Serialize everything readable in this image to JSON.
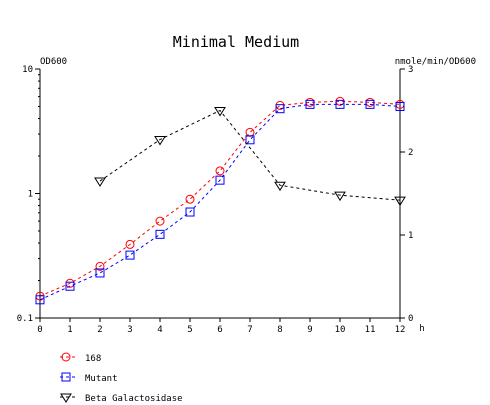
{
  "chart_data": {
    "type": "line",
    "title": "Minimal Medium",
    "y_left_label": "OD600",
    "y_right_label": "nmole/min/OD600",
    "x_unit": "h",
    "x_ticks": [
      "0",
      "1",
      "2",
      "3",
      "4",
      "5",
      "6",
      "7",
      "8",
      "9",
      "10",
      "11",
      "12"
    ],
    "y_left_ticks": [
      "0.1",
      "1",
      "10"
    ],
    "y_right_ticks": [
      "0",
      "1",
      "2",
      "3"
    ],
    "xlim": [
      0,
      12
    ],
    "y_left_lim": [
      0.1,
      10
    ],
    "y_left_scale": "log",
    "y_right_lim": [
      0,
      3
    ],
    "grid": false,
    "legend_position": "bottom-left",
    "series": [
      {
        "name": "168",
        "axis": "left",
        "color": "#ff0000",
        "line_color": "#ff0000",
        "marker": "circle",
        "x": [
          0,
          1,
          2,
          3,
          4,
          5,
          6,
          7,
          8,
          9,
          10,
          11,
          12
        ],
        "values": [
          0.15,
          0.19,
          0.26,
          0.39,
          0.6,
          0.9,
          1.52,
          3.1,
          5.1,
          5.4,
          5.5,
          5.4,
          5.2
        ]
      },
      {
        "name": "Mutant",
        "axis": "left",
        "color": "#0000ff",
        "line_color": "#0000ff",
        "marker": "square",
        "x": [
          0,
          1,
          2,
          3,
          4,
          5,
          6,
          7,
          8,
          9,
          10,
          11,
          12
        ],
        "values": [
          0.14,
          0.18,
          0.23,
          0.32,
          0.47,
          0.71,
          1.28,
          2.7,
          4.8,
          5.2,
          5.2,
          5.2,
          5.0
        ]
      },
      {
        "name": "Beta Galactosidase",
        "axis": "right",
        "color": "#000000",
        "line_color": "#000000",
        "marker": "triangle-down",
        "x": [
          2,
          4,
          6,
          8,
          10,
          12
        ],
        "values": [
          1.65,
          2.15,
          2.5,
          1.6,
          1.48,
          1.42
        ]
      }
    ]
  }
}
